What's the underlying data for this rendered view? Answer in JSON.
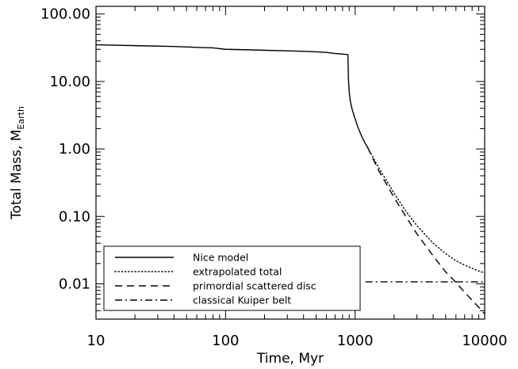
{
  "chart_data": {
    "type": "line",
    "xlabel": "Time, Myr",
    "ylabel": "Total Mass, M",
    "ylabel_sub": "Earth",
    "xscale": "log",
    "yscale": "log",
    "xlim": [
      10,
      10000
    ],
    "ylim": [
      0.003,
      130
    ],
    "x_ticks": [
      {
        "value": 10,
        "label": "10"
      },
      {
        "value": 100,
        "label": "100"
      },
      {
        "value": 1000,
        "label": "1000"
      },
      {
        "value": 10000,
        "label": "10000"
      }
    ],
    "y_ticks": [
      {
        "value": 0.01,
        "label": "0.01"
      },
      {
        "value": 0.1,
        "label": "0.10"
      },
      {
        "value": 1,
        "label": "1.00"
      },
      {
        "value": 10,
        "label": "10.00"
      },
      {
        "value": 100,
        "label": "100.00"
      }
    ],
    "legend_position": "bottom-left",
    "series": [
      {
        "name": "Nice model",
        "style": "solid",
        "x": [
          10,
          20,
          40,
          60,
          80,
          100,
          150,
          200,
          300,
          400,
          500,
          600,
          700,
          800,
          880,
          888,
          900,
          920,
          950,
          1000,
          1050,
          1100,
          1150,
          1200,
          1250
        ],
        "y": [
          35,
          34,
          33,
          32,
          31.5,
          30,
          29.5,
          29,
          28.5,
          28,
          27.5,
          27,
          26,
          25.5,
          25,
          11,
          7,
          5,
          3.8,
          2.8,
          2.1,
          1.7,
          1.4,
          1.2,
          1.05
        ]
      },
      {
        "name": "extrapolated total",
        "style": "dotted",
        "x": [
          1250,
          1500,
          2000,
          2500,
          3000,
          4000,
          5000,
          6000,
          7000,
          8000,
          9000,
          10000
        ],
        "y": [
          1.05,
          0.55,
          0.22,
          0.115,
          0.073,
          0.04,
          0.028,
          0.022,
          0.019,
          0.017,
          0.0155,
          0.0145
        ]
      },
      {
        "name": "primordial scattered disc",
        "style": "dashed",
        "x": [
          1250,
          1500,
          2000,
          2500,
          3000,
          4000,
          5000,
          6000,
          7000,
          8000,
          9000,
          10000
        ],
        "y": [
          1.05,
          0.5,
          0.19,
          0.095,
          0.055,
          0.026,
          0.015,
          0.0105,
          0.0075,
          0.0057,
          0.0045,
          0.0036
        ]
      },
      {
        "name": "classical Kuiper belt",
        "style": "dashdot",
        "x": [
          1200,
          10000
        ],
        "y": [
          0.0107,
          0.0107
        ]
      }
    ]
  }
}
